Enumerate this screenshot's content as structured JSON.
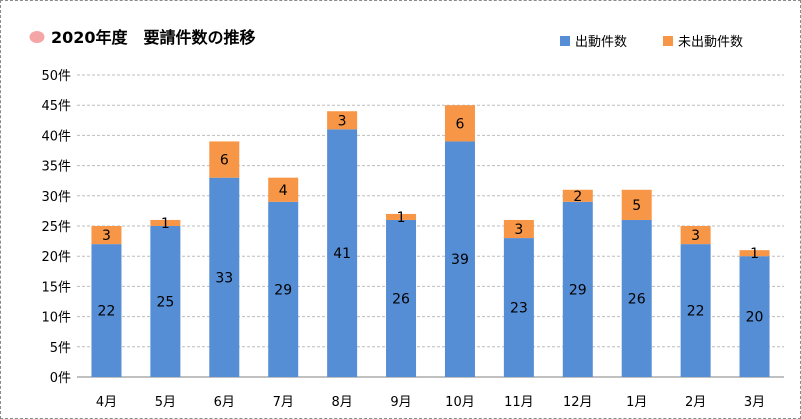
{
  "chart_data": {
    "type": "bar",
    "stacked": true,
    "title": "2020年度　要請件数の推移",
    "categories": [
      "4月",
      "5月",
      "6月",
      "7月",
      "8月",
      "9月",
      "10月",
      "11月",
      "12月",
      "1月",
      "2月",
      "3月"
    ],
    "series": [
      {
        "name": "出動件数",
        "color": "#558ed5",
        "values": [
          22,
          25,
          33,
          29,
          41,
          26,
          39,
          23,
          29,
          26,
          22,
          20
        ]
      },
      {
        "name": "未出動件数",
        "color": "#f79646",
        "values": [
          3,
          1,
          6,
          4,
          3,
          1,
          6,
          3,
          2,
          5,
          3,
          1
        ]
      }
    ],
    "yticks": [
      "0件",
      "5件",
      "10件",
      "15件",
      "20件",
      "25件",
      "30件",
      "35件",
      "40件",
      "45件",
      "50件"
    ],
    "ylim": [
      0,
      50
    ],
    "grid": true,
    "legend_position": "top-right",
    "title_marker_color": "#f4a6a6"
  }
}
